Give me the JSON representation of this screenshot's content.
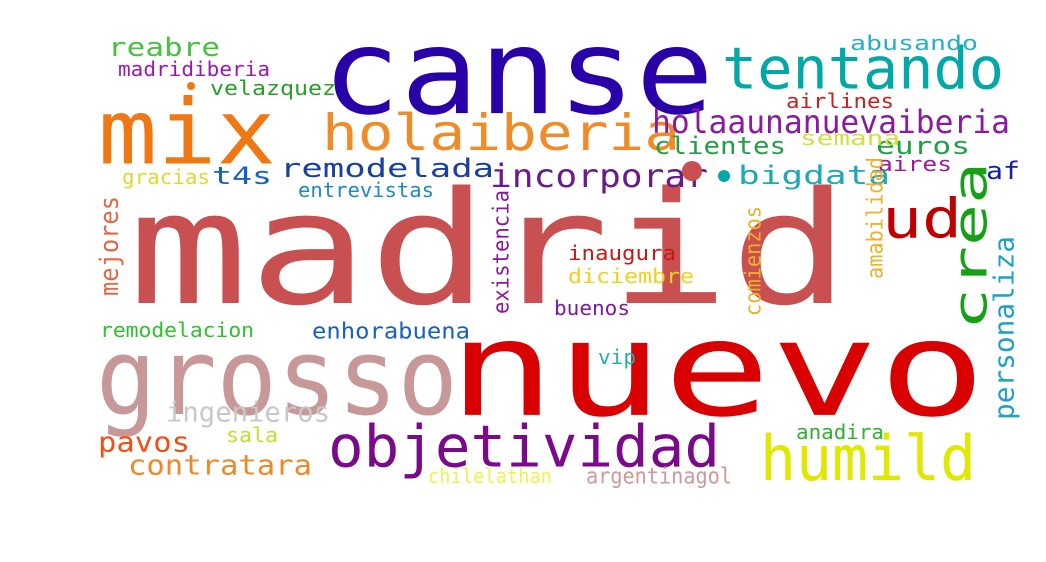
{
  "words": [
    {
      "text": "madrid",
      "color": "#c85050"
    },
    {
      "text": "nuevo",
      "color": "#d80000"
    },
    {
      "text": "canse",
      "color": "#2a00a8"
    },
    {
      "text": "mix",
      "color": "#f07814"
    },
    {
      "text": "grosso",
      "color": "#c89898"
    },
    {
      "text": "tentando",
      "color": "#00a8a8"
    },
    {
      "text": "holaiberia",
      "color": "#f08c28"
    },
    {
      "text": "objetividad",
      "color": "#7a0a8a"
    },
    {
      "text": "humild",
      "color": "#e0e800"
    },
    {
      "text": "ud",
      "color": "#c00000"
    },
    {
      "text": "crea",
      "color": "#16a016"
    },
    {
      "text": "holaaunanuevaiberia",
      "color": "#8a1aa0"
    },
    {
      "text": "incorporar",
      "color": "#6a1a8a"
    },
    {
      "text": "remodelada",
      "color": "#1840a0"
    },
    {
      "text": "reabre",
      "color": "#48c040"
    },
    {
      "text": "madridiberia",
      "color": "#9a1ab0"
    },
    {
      "text": "velazquez",
      "color": "#28a028"
    },
    {
      "text": "abusando",
      "color": "#28b0c0"
    },
    {
      "text": "airlines",
      "color": "#c82020"
    },
    {
      "text": "euros",
      "color": "#20a048"
    },
    {
      "text": "clientes",
      "color": "#20a048"
    },
    {
      "text": "semana",
      "color": "#d0e040"
    },
    {
      "text": "aires",
      "color": "#9a1a9a"
    },
    {
      "text": "af",
      "color": "#1020a0"
    },
    {
      "text": "t4s",
      "color": "#1860c0"
    },
    {
      "text": "bigdata",
      "color": "#20a8b8"
    },
    {
      "text": "gracias",
      "color": "#e0d830"
    },
    {
      "text": "entrevistas",
      "color": "#2088c0"
    },
    {
      "text": "mejores",
      "color": "#e06848"
    },
    {
      "text": "existencia",
      "color": "#8a1a9a"
    },
    {
      "text": "comienzos",
      "color": "#f0b028"
    },
    {
      "text": "amabilidad",
      "color": "#f0b028"
    },
    {
      "text": "personaliza",
      "color": "#20a0c8"
    },
    {
      "text": "inaugura",
      "color": "#c81818"
    },
    {
      "text": "diciembre",
      "color": "#f0d020"
    },
    {
      "text": "buenos",
      "color": "#7a1aa0"
    },
    {
      "text": "remodelacion",
      "color": "#30c030"
    },
    {
      "text": "enhorabuena",
      "color": "#1860c0"
    },
    {
      "text": "vip",
      "color": "#20b0b0"
    },
    {
      "text": "ingenieros",
      "color": "#c8c8c8"
    },
    {
      "text": "pavos",
      "color": "#f05018"
    },
    {
      "text": "sala",
      "color": "#c0e030"
    },
    {
      "text": "contratara",
      "color": "#f08828"
    },
    {
      "text": "anadira",
      "color": "#30b030"
    },
    {
      "text": "chilelathan",
      "color": "#f0f050"
    },
    {
      "text": "argentinagol",
      "color": "#d09898"
    }
  ],
  "dots": [
    {
      "color": "#c85050"
    },
    {
      "color": "#f07814"
    },
    {
      "color": "#00a8a8"
    }
  ]
}
